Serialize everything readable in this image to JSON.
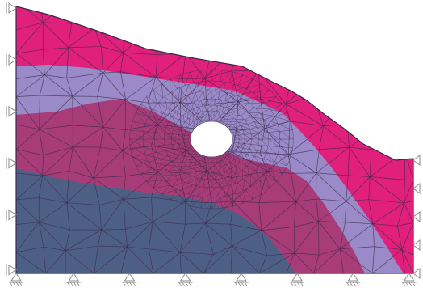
{
  "figure": {
    "type": "finite-element-mesh",
    "description_visible_text": "",
    "layers": [
      {
        "name": "top-layer",
        "color": "#e0207a"
      },
      {
        "name": "upper-middle-layer",
        "color": "#9a8ac8"
      },
      {
        "name": "lower-middle-layer",
        "color": "#a83c78"
      },
      {
        "name": "bottom-layer",
        "color": "#4e5f86"
      }
    ],
    "tunnel": {
      "color": "#ffffff"
    },
    "mesh_line_color": "#3a2a4a",
    "support_symbol_color": "#8a8a8a",
    "supports": {
      "left_rollers": 6,
      "right_rollers": 5,
      "bottom_pins": 8
    }
  }
}
